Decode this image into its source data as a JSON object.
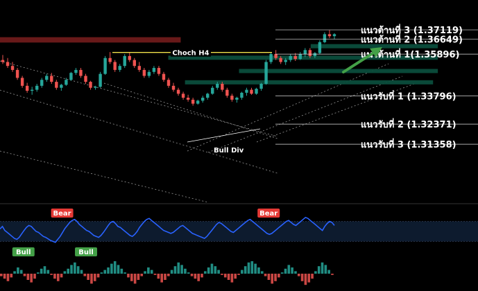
{
  "chart_data": {
    "type": "candlestick",
    "title": "",
    "price_range": [
      1.285,
      1.3775
    ],
    "ohlc": [
      [
        1.356,
        1.3585,
        1.354,
        1.355
      ],
      [
        1.355,
        1.357,
        1.352,
        1.353
      ],
      [
        1.353,
        1.355,
        1.35,
        1.351
      ],
      [
        1.351,
        1.352,
        1.346,
        1.347
      ],
      [
        1.347,
        1.348,
        1.342,
        1.343
      ],
      [
        1.343,
        1.3445,
        1.3395,
        1.3405
      ],
      [
        1.3405,
        1.3425,
        1.3385,
        1.341
      ],
      [
        1.341,
        1.344,
        1.34,
        1.343
      ],
      [
        1.343,
        1.347,
        1.342,
        1.346
      ],
      [
        1.346,
        1.349,
        1.345,
        1.348
      ],
      [
        1.348,
        1.3495,
        1.344,
        1.345
      ],
      [
        1.345,
        1.346,
        1.341,
        1.342
      ],
      [
        1.342,
        1.344,
        1.3405,
        1.3435
      ],
      [
        1.3435,
        1.347,
        1.343,
        1.346
      ],
      [
        1.346,
        1.35,
        1.3455,
        1.3495
      ],
      [
        1.3495,
        1.352,
        1.3485,
        1.351
      ],
      [
        1.351,
        1.352,
        1.347,
        1.348
      ],
      [
        1.348,
        1.349,
        1.344,
        1.345
      ],
      [
        1.345,
        1.3455,
        1.341,
        1.342
      ],
      [
        1.342,
        1.343,
        1.341,
        1.3425
      ],
      [
        1.3425,
        1.35,
        1.342,
        1.349
      ],
      [
        1.349,
        1.358,
        1.3485,
        1.357
      ],
      [
        1.357,
        1.36,
        1.354,
        1.355
      ],
      [
        1.355,
        1.356,
        1.35,
        1.351
      ],
      [
        1.351,
        1.354,
        1.35,
        1.353
      ],
      [
        1.353,
        1.359,
        1.352,
        1.358
      ],
      [
        1.358,
        1.36,
        1.355,
        1.356
      ],
      [
        1.356,
        1.357,
        1.352,
        1.353
      ],
      [
        1.353,
        1.355,
        1.35,
        1.351
      ],
      [
        1.351,
        1.352,
        1.347,
        1.348
      ],
      [
        1.348,
        1.351,
        1.347,
        1.35
      ],
      [
        1.35,
        1.353,
        1.349,
        1.352
      ],
      [
        1.352,
        1.353,
        1.348,
        1.349
      ],
      [
        1.349,
        1.35,
        1.345,
        1.346
      ],
      [
        1.346,
        1.347,
        1.342,
        1.343
      ],
      [
        1.343,
        1.3445,
        1.34,
        1.341
      ],
      [
        1.341,
        1.342,
        1.338,
        1.339
      ],
      [
        1.339,
        1.34,
        1.336,
        1.337
      ],
      [
        1.337,
        1.3385,
        1.335,
        1.336
      ],
      [
        1.336,
        1.337,
        1.333,
        1.334
      ],
      [
        1.334,
        1.336,
        1.3335,
        1.3355
      ],
      [
        1.3355,
        1.338,
        1.3345,
        1.337
      ],
      [
        1.337,
        1.3395,
        1.336,
        1.339
      ],
      [
        1.339,
        1.343,
        1.3385,
        1.342
      ],
      [
        1.342,
        1.345,
        1.341,
        1.344
      ],
      [
        1.344,
        1.345,
        1.34,
        1.341
      ],
      [
        1.341,
        1.342,
        1.337,
        1.338
      ],
      [
        1.338,
        1.339,
        1.335,
        1.336
      ],
      [
        1.336,
        1.3375,
        1.3345,
        1.337
      ],
      [
        1.337,
        1.34,
        1.336,
        1.3395
      ],
      [
        1.3395,
        1.342,
        1.338,
        1.341
      ],
      [
        1.341,
        1.342,
        1.3385,
        1.339
      ],
      [
        1.339,
        1.342,
        1.3385,
        1.3415
      ],
      [
        1.3415,
        1.3445,
        1.3405,
        1.344
      ],
      [
        1.344,
        1.356,
        1.3435,
        1.355
      ],
      [
        1.355,
        1.36,
        1.354,
        1.359
      ],
      [
        1.359,
        1.361,
        1.356,
        1.357
      ],
      [
        1.357,
        1.358,
        1.354,
        1.355
      ],
      [
        1.355,
        1.357,
        1.3535,
        1.356
      ],
      [
        1.356,
        1.359,
        1.355,
        1.358
      ],
      [
        1.358,
        1.3595,
        1.3555,
        1.3565
      ],
      [
        1.3565,
        1.36,
        1.356,
        1.359
      ],
      [
        1.359,
        1.362,
        1.3575,
        1.361
      ],
      [
        1.361,
        1.362,
        1.357,
        1.358
      ],
      [
        1.358,
        1.36,
        1.357,
        1.3595
      ],
      [
        1.3595,
        1.366,
        1.359,
        1.365
      ],
      [
        1.365,
        1.37,
        1.3645,
        1.369
      ],
      [
        1.369,
        1.371,
        1.367,
        1.368
      ],
      [
        1.368,
        1.3695,
        1.3665,
        1.369
      ]
    ],
    "zones": [
      {
        "price_top": 1.3675,
        "price_bottom": 1.3648,
        "x_from": 0.0,
        "x_to": 0.378
      },
      {
        "price_top": 1.364,
        "price_bottom": 1.362,
        "x_from": 0.65,
        "x_to": 0.916
      },
      {
        "price_top": 1.3582,
        "price_bottom": 1.3562,
        "x_from": 0.352,
        "x_to": 0.916
      },
      {
        "price_top": 1.3515,
        "price_bottom": 1.3495,
        "x_from": 0.5,
        "x_to": 0.916
      },
      {
        "price_top": 1.3458,
        "price_bottom": 1.3438,
        "x_from": 0.387,
        "x_to": 0.906
      }
    ],
    "levels": [
      {
        "label": "แนวต้านที่ 3 (1.37119)",
        "price": 1.37119,
        "kind": "resistance"
      },
      {
        "label": "แนวต้านที่ 2 (1.36649)",
        "price": 1.36649,
        "kind": "resistance"
      },
      {
        "label": "แนวต้านที่ 1(1.35896)",
        "price": 1.35896,
        "kind": "resistance"
      },
      {
        "label": "แนวรับที่ 1 (1.33796)",
        "price": 1.33796,
        "kind": "support"
      },
      {
        "label": "แนวรับที่ 2 (1.32371)",
        "price": 1.32371,
        "kind": "support"
      },
      {
        "label": "แนวรับที่ 3 (1.31358)",
        "price": 1.31358,
        "kind": "support"
      }
    ],
    "annotations": {
      "choch": {
        "label": "Choch H4",
        "price": 1.3598
      },
      "bull_div": {
        "label": "Bull Div"
      }
    },
    "rsi": {
      "range": [
        0,
        100
      ],
      "levels": [
        70,
        30
      ],
      "values": [
        55,
        60,
        52,
        48,
        44,
        40,
        36,
        34,
        38,
        45,
        52,
        58,
        62,
        60,
        55,
        50,
        48,
        44,
        40,
        38,
        35,
        32,
        30,
        28,
        34,
        40,
        48,
        56,
        62,
        68,
        72,
        74,
        70,
        64,
        60,
        56,
        52,
        50,
        46,
        42,
        40,
        38,
        42,
        48,
        55,
        62,
        68,
        70,
        66,
        60,
        58,
        54,
        50,
        46,
        42,
        40,
        44,
        50,
        58,
        64,
        70,
        74,
        76,
        72,
        68,
        64,
        60,
        56,
        52,
        50,
        48,
        46,
        48,
        52,
        56,
        60,
        62,
        58,
        54,
        50,
        46,
        44,
        42,
        40,
        38,
        36,
        40,
        46,
        52,
        58,
        64,
        68,
        66,
        62,
        58,
        54,
        50,
        48,
        52,
        56,
        60,
        64,
        68,
        72,
        74,
        70,
        66,
        62,
        58,
        54,
        50,
        46,
        44,
        46,
        50,
        54,
        58,
        62,
        66,
        70,
        72,
        68,
        64,
        62,
        66,
        70,
        74,
        78,
        76,
        72,
        68,
        64,
        60,
        56,
        52,
        60,
        66,
        70,
        68,
        62
      ],
      "labels": [
        {
          "text": "Bear",
          "kind": "bear",
          "at": 0.13
        },
        {
          "text": "Bear",
          "kind": "bear",
          "at": 0.562
        },
        {
          "text": "Bull",
          "kind": "bull",
          "at": 0.049
        },
        {
          "text": "Bull",
          "kind": "bull",
          "at": 0.18
        }
      ]
    },
    "histogram": [
      -0.2,
      -0.4,
      -0.6,
      -0.3,
      0.2,
      0.5,
      0.3,
      -0.2,
      -0.5,
      -0.7,
      -0.4,
      0.1,
      0.4,
      0.6,
      0.3,
      -0.1,
      -0.4,
      -0.6,
      -0.3,
      0.2,
      0.4,
      0.7,
      0.9,
      0.6,
      0.3,
      -0.2,
      -0.5,
      -0.8,
      -0.6,
      -0.3,
      0.1,
      0.3,
      0.5,
      0.8,
      1.0,
      0.7,
      0.4,
      0.1,
      -0.3,
      -0.6,
      -0.8,
      -0.5,
      -0.2,
      0.2,
      0.5,
      0.3,
      -0.1,
      -0.4,
      -0.7,
      -0.5,
      -0.2,
      0.3,
      0.6,
      0.9,
      0.7,
      0.4,
      0.1,
      -0.2,
      -0.4,
      -0.6,
      -0.3,
      0.2,
      0.5,
      0.8,
      0.6,
      0.3,
      -0.1,
      -0.3,
      -0.5,
      -0.7,
      -0.4,
      -0.1,
      0.3,
      0.6,
      0.9,
      1.0,
      0.8,
      0.5,
      0.2,
      -0.2,
      -0.5,
      -0.8,
      -0.6,
      -0.3,
      0.1,
      0.4,
      0.7,
      0.5,
      0.2,
      -0.2,
      -0.6,
      -0.9,
      -0.7,
      -0.4,
      0.2,
      0.6,
      0.9,
      0.7,
      0.3,
      -0.1
    ],
    "colors": {
      "background": "#000000",
      "bull": "#26a69a",
      "bear": "#ef5350",
      "zone": "#0b4d3c",
      "red_zone": "#6e1a1a",
      "rsi_line": "#2962ff",
      "rsi_band": "#0d1b2e",
      "choch_line": "#f2e24a",
      "arrow": "#43a047",
      "label_text": "#ffffff"
    }
  }
}
